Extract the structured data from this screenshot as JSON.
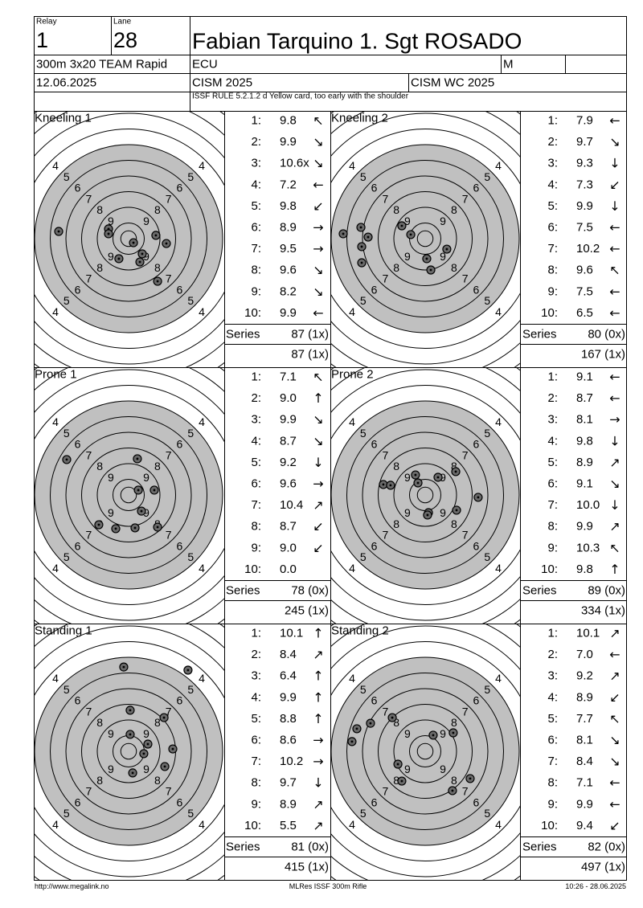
{
  "header": {
    "relay_label": "Relay",
    "relay": "1",
    "lane_label": "Lane",
    "lane": "28",
    "name": "Fabian Tarquino 1. Sgt ROSADO",
    "event": "300m 3x20 TEAM Rapid",
    "nation": "ECU",
    "gender": "M",
    "date": "12.06.2025",
    "competition": "CISM 2025",
    "match": "CISM WC 2025",
    "note": "ISSF RULE 5.2.1.2 d Yellow card, too early with the shoulder"
  },
  "panels": [
    {
      "title": "Kneeling 1",
      "series_label": "Series",
      "series": "87 (1x)",
      "total": "87 (1x)",
      "shots": [
        {
          "n": "1:",
          "score": "9.8",
          "dir": "↖"
        },
        {
          "n": "2:",
          "score": "9.9",
          "dir": "↘"
        },
        {
          "n": "3:",
          "score": "10.6x",
          "dir": "↘"
        },
        {
          "n": "4:",
          "score": "7.2",
          "dir": "←"
        },
        {
          "n": "5:",
          "score": "9.8",
          "dir": "↙"
        },
        {
          "n": "6:",
          "score": "8.9",
          "dir": "→"
        },
        {
          "n": "7:",
          "score": "9.5",
          "dir": "→"
        },
        {
          "n": "8:",
          "score": "9.6",
          "dir": "↘"
        },
        {
          "n": "9:",
          "score": "8.2",
          "dir": "↘"
        },
        {
          "n": "10:",
          "score": "9.9",
          "dir": "←"
        }
      ],
      "hits": [
        [
          -4.46,
          -0.46
        ],
        [
          -1.28,
          -0.62
        ],
        [
          -1.28,
          -0.31
        ],
        [
          0.31,
          0.26
        ],
        [
          1.74,
          -0.21
        ],
        [
          2.41,
          0.31
        ],
        [
          0.87,
          0.97
        ],
        [
          -0.62,
          1.28
        ],
        [
          0.72,
          1.49
        ],
        [
          1.85,
          2.72
        ]
      ]
    },
    {
      "title": "Kneeling 2",
      "series_label": "Series",
      "series": "80 (0x)",
      "total": "167 (1x)",
      "shots": [
        {
          "n": "1:",
          "score": "7.9",
          "dir": "←"
        },
        {
          "n": "2:",
          "score": "9.7",
          "dir": "↘"
        },
        {
          "n": "3:",
          "score": "9.3",
          "dir": "↓"
        },
        {
          "n": "4:",
          "score": "7.3",
          "dir": "↙"
        },
        {
          "n": "5:",
          "score": "9.9",
          "dir": "↓"
        },
        {
          "n": "6:",
          "score": "7.5",
          "dir": "←"
        },
        {
          "n": "7:",
          "score": "10.2",
          "dir": "←"
        },
        {
          "n": "8:",
          "score": "9.6",
          "dir": "↖"
        },
        {
          "n": "9:",
          "score": "7.5",
          "dir": "←"
        },
        {
          "n": "10:",
          "score": "6.5",
          "dir": "←"
        }
      ],
      "hits": [
        [
          -5.23,
          -0.31
        ],
        [
          -4.1,
          -0.72
        ],
        [
          -3.64,
          -0.1
        ],
        [
          -4.05,
          0.51
        ],
        [
          -4.05,
          1.54
        ],
        [
          -1.49,
          -0.82
        ],
        [
          -0.92,
          -0.26
        ],
        [
          1.38,
          0.67
        ],
        [
          0.1,
          1.28
        ],
        [
          0.36,
          2.0
        ]
      ]
    },
    {
      "title": "Prone 1",
      "series_label": "Series",
      "series": "78 (0x)",
      "total": "245 (1x)",
      "shots": [
        {
          "n": "1:",
          "score": "7.1",
          "dir": "↖"
        },
        {
          "n": "2:",
          "score": "9.0",
          "dir": "↑"
        },
        {
          "n": "3:",
          "score": "9.9",
          "dir": "↘"
        },
        {
          "n": "4:",
          "score": "8.7",
          "dir": "↘"
        },
        {
          "n": "5:",
          "score": "9.2",
          "dir": "↓"
        },
        {
          "n": "6:",
          "score": "9.6",
          "dir": "→"
        },
        {
          "n": "7:",
          "score": "10.4",
          "dir": "↗"
        },
        {
          "n": "8:",
          "score": "8.7",
          "dir": "↙"
        },
        {
          "n": "9:",
          "score": "9.0",
          "dir": "↙"
        },
        {
          "n": "10:",
          "score": "0.0"
        }
      ],
      "hits": [
        [
          -3.95,
          -2.26
        ],
        [
          0.56,
          -2.31
        ],
        [
          0.62,
          -0.31
        ],
        [
          1.64,
          -0.31
        ],
        [
          0.82,
          1.03
        ],
        [
          -1.9,
          1.9
        ],
        [
          -0.82,
          2.15
        ],
        [
          0.41,
          2.1
        ],
        [
          1.85,
          2.05
        ]
      ]
    },
    {
      "title": "Prone 2",
      "series_label": "Series",
      "series": "89 (0x)",
      "total": "334 (1x)",
      "shots": [
        {
          "n": "1:",
          "score": "9.1",
          "dir": "←"
        },
        {
          "n": "2:",
          "score": "8.7",
          "dir": "←"
        },
        {
          "n": "3:",
          "score": "8.1",
          "dir": "→"
        },
        {
          "n": "4:",
          "score": "9.8",
          "dir": "↓"
        },
        {
          "n": "5:",
          "score": "8.9",
          "dir": "↗"
        },
        {
          "n": "6:",
          "score": "9.1",
          "dir": "↘"
        },
        {
          "n": "7:",
          "score": "10.0",
          "dir": "↓"
        },
        {
          "n": "8:",
          "score": "9.9",
          "dir": "↗"
        },
        {
          "n": "9:",
          "score": "10.3",
          "dir": "↖"
        },
        {
          "n": "10:",
          "score": "9.8",
          "dir": "↑"
        }
      ],
      "hits": [
        [
          -2.67,
          -0.67
        ],
        [
          -2.21,
          -0.62
        ],
        [
          -0.62,
          -1.28
        ],
        [
          -0.46,
          -0.77
        ],
        [
          0.82,
          -1.13
        ],
        [
          1.95,
          -1.49
        ],
        [
          3.38,
          0.15
        ],
        [
          2.0,
          0.97
        ],
        [
          0.21,
          1.13
        ],
        [
          0.15,
          1.28
        ]
      ]
    },
    {
      "title": "Standing 1",
      "series_label": "Series",
      "series": "81 (0x)",
      "total": "415 (1x)",
      "shots": [
        {
          "n": "1:",
          "score": "10.1",
          "dir": "↑"
        },
        {
          "n": "2:",
          "score": "8.4",
          "dir": "↗"
        },
        {
          "n": "3:",
          "score": "6.4",
          "dir": "↑"
        },
        {
          "n": "4:",
          "score": "9.9",
          "dir": "↑"
        },
        {
          "n": "5:",
          "score": "8.8",
          "dir": "↑"
        },
        {
          "n": "6:",
          "score": "8.6",
          "dir": "→"
        },
        {
          "n": "7:",
          "score": "10.2",
          "dir": "→"
        },
        {
          "n": "8:",
          "score": "9.7",
          "dir": "↓"
        },
        {
          "n": "9:",
          "score": "8.9",
          "dir": "↗"
        },
        {
          "n": "10:",
          "score": "5.5",
          "dir": "↗"
        }
      ],
      "hits": [
        [
          -0.31,
          -5.38
        ],
        [
          3.79,
          -5.18
        ],
        [
          0.1,
          -2.62
        ],
        [
          2.26,
          -2.15
        ],
        [
          2.82,
          -0.15
        ],
        [
          0.1,
          -1.08
        ],
        [
          1.23,
          -0.46
        ],
        [
          0.97,
          0.15
        ],
        [
          2.31,
          0.97
        ],
        [
          0.26,
          1.38
        ]
      ]
    },
    {
      "title": "Standing 2",
      "series_label": "Series",
      "series": "82 (0x)",
      "total": "497 (1x)",
      "shots": [
        {
          "n": "1:",
          "score": "10.1",
          "dir": "↗"
        },
        {
          "n": "2:",
          "score": "7.0",
          "dir": "←"
        },
        {
          "n": "3:",
          "score": "9.2",
          "dir": "↗"
        },
        {
          "n": "4:",
          "score": "8.9",
          "dir": "↙"
        },
        {
          "n": "5:",
          "score": "7.7",
          "dir": "↖"
        },
        {
          "n": "6:",
          "score": "8.1",
          "dir": "↘"
        },
        {
          "n": "7:",
          "score": "8.4",
          "dir": "↘"
        },
        {
          "n": "8:",
          "score": "7.1",
          "dir": "←"
        },
        {
          "n": "9:",
          "score": "9.9",
          "dir": "←"
        },
        {
          "n": "10:",
          "score": "9.4",
          "dir": "↙"
        }
      ],
      "hits": [
        [
          -4.67,
          -0.62
        ],
        [
          -4.36,
          -1.44
        ],
        [
          -3.49,
          -1.79
        ],
        [
          -2.1,
          -2.15
        ],
        [
          0.51,
          -1.03
        ],
        [
          1.79,
          -1.18
        ],
        [
          -1.74,
          0.82
        ],
        [
          -1.49,
          1.9
        ],
        [
          1.74,
          2.51
        ],
        [
          2.87,
          1.74
        ]
      ]
    }
  ],
  "footer": {
    "url": "http://www.megalink.no",
    "software": "MLRes ISSF 300m Rifle",
    "time": "10:26 - 28.06.2025"
  }
}
